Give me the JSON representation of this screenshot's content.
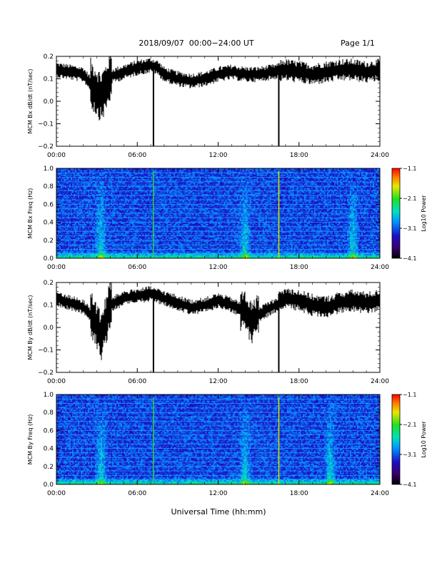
{
  "header": {
    "title": "2018/09/07  00:00−24:00 UT",
    "page": "Page 1/1"
  },
  "footer": {
    "xlabel": "Universal Time (hh:mm)"
  },
  "chart_data": [
    {
      "type": "line",
      "ylabel": "MCM Bx dB/dt (nT/sec)",
      "xlim": [
        0,
        24
      ],
      "ylim": [
        -0.2,
        0.2
      ],
      "xticks": [
        "00:00",
        "06:00",
        "12:00",
        "18:00",
        "24:00"
      ],
      "yticks": [
        "−0.2",
        "−0.1",
        "0.0",
        "0.1",
        "0.2"
      ],
      "grid": false,
      "x": [
        0,
        1,
        2,
        2.8,
        3.3,
        3.6,
        4.0,
        5,
        6,
        7,
        7.5,
        8,
        9,
        10,
        11,
        12,
        13,
        14,
        15,
        16,
        17,
        18,
        19,
        20,
        21,
        22,
        23,
        24
      ],
      "values": [
        0.14,
        0.13,
        0.12,
        0.06,
        0.02,
        0.05,
        0.11,
        0.13,
        0.15,
        0.16,
        0.15,
        0.12,
        0.1,
        0.09,
        0.1,
        0.12,
        0.13,
        0.12,
        0.12,
        0.13,
        0.14,
        0.13,
        0.12,
        0.13,
        0.14,
        0.14,
        0.13,
        0.14
      ],
      "spikes": [
        7.2,
        16.5
      ]
    },
    {
      "type": "heatmap",
      "ylabel": "MCM Bx Freq (Hz)",
      "colorbar_label": "Log10 Power",
      "xlim": [
        0,
        24
      ],
      "ylim": [
        0,
        1.0
      ],
      "xticks": [
        "00:00",
        "06:00",
        "12:00",
        "18:00",
        "24:00"
      ],
      "yticks": [
        "0.0",
        "0.2",
        "0.4",
        "0.6",
        "0.8",
        "1.0"
      ],
      "colorbar_ticks": [
        "−1.1",
        "−2.1",
        "−3.1",
        "−4.1"
      ],
      "colorbar_range": [
        -4.1,
        -1.1
      ],
      "harmonic_lines_hz": [
        0.05,
        0.1,
        0.15,
        0.2,
        0.25,
        0.3,
        0.35,
        0.4,
        0.45,
        0.5,
        0.55,
        0.6,
        0.65,
        0.7,
        0.75,
        0.8,
        0.85,
        0.9,
        0.95
      ],
      "bright_vertical_lines": [
        7.2,
        16.5
      ],
      "activity_bursts": [
        3.3,
        14.0,
        22.0
      ]
    },
    {
      "type": "line",
      "ylabel": "MCM By dB/dt (nT/sec)",
      "xlim": [
        0,
        24
      ],
      "ylim": [
        -0.2,
        0.2
      ],
      "xticks": [
        "00:00",
        "06:00",
        "12:00",
        "18:00",
        "24:00"
      ],
      "yticks": [
        "−0.2",
        "−0.1",
        "0.0",
        "0.1",
        "0.2"
      ],
      "grid": false,
      "x": [
        0,
        1,
        2,
        2.8,
        3.3,
        3.6,
        4.0,
        5,
        6,
        7,
        7.5,
        8,
        9,
        10,
        11,
        12,
        13,
        14,
        14.5,
        15,
        16,
        17,
        18,
        19,
        20,
        21,
        22,
        23,
        24
      ],
      "values": [
        0.13,
        0.11,
        0.09,
        0.04,
        -0.05,
        0.02,
        0.1,
        0.13,
        0.14,
        0.15,
        0.14,
        0.13,
        0.11,
        0.09,
        0.1,
        0.12,
        0.1,
        0.07,
        0.02,
        0.06,
        0.09,
        0.13,
        0.12,
        0.1,
        0.09,
        0.11,
        0.12,
        0.11,
        0.12
      ],
      "spikes": [
        7.2,
        16.5
      ]
    },
    {
      "type": "heatmap",
      "ylabel": "MCM By Freq (Hz)",
      "colorbar_label": "Log10 Power",
      "xlim": [
        0,
        24
      ],
      "ylim": [
        0,
        1.0
      ],
      "xticks": [
        "00:00",
        "06:00",
        "12:00",
        "18:00",
        "24:00"
      ],
      "yticks": [
        "0.0",
        "0.2",
        "0.4",
        "0.6",
        "0.8",
        "1.0"
      ],
      "colorbar_ticks": [
        "−1.1",
        "−2.1",
        "−3.1",
        "−4.1"
      ],
      "colorbar_range": [
        -4.1,
        -1.1
      ],
      "harmonic_lines_hz": [
        0.05,
        0.1,
        0.15,
        0.2,
        0.25,
        0.3,
        0.35,
        0.4,
        0.45,
        0.5,
        0.55,
        0.6,
        0.65,
        0.7,
        0.75,
        0.8,
        0.85,
        0.9,
        0.95
      ],
      "bright_vertical_lines": [
        7.2,
        16.5
      ],
      "activity_bursts": [
        3.3,
        14.0,
        20.3
      ]
    }
  ]
}
